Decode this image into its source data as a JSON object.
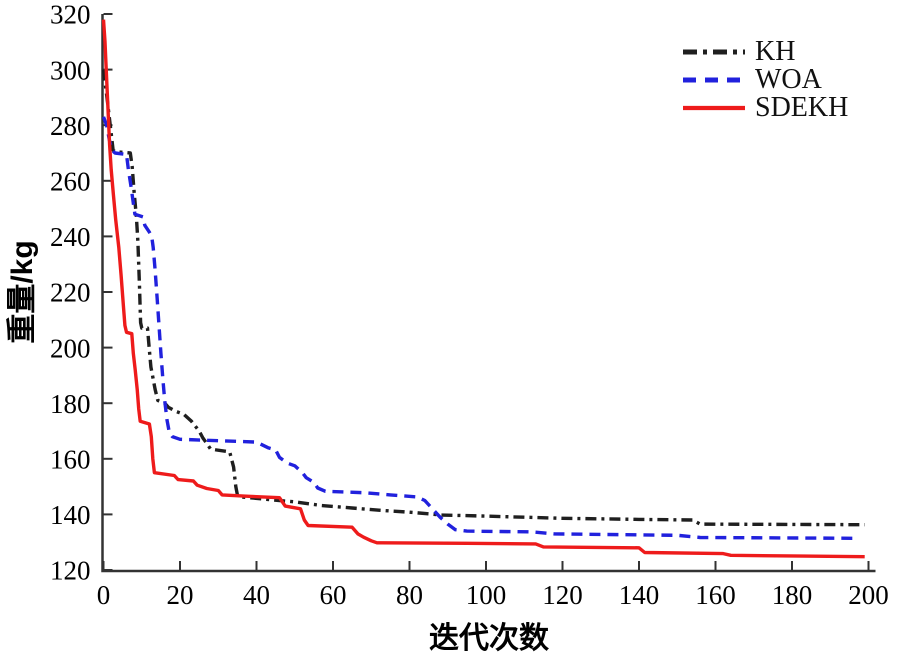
{
  "figure": {
    "background": "#ffffff"
  },
  "chart_data": {
    "type": "line",
    "title": "",
    "xlabel": "迭代次数",
    "ylabel": "重量/kg",
    "xlim": [
      0,
      200
    ],
    "ylim": [
      120,
      320
    ],
    "xticks": [
      0,
      20,
      40,
      60,
      80,
      100,
      120,
      140,
      160,
      180,
      200
    ],
    "yticks": [
      120,
      140,
      160,
      180,
      200,
      220,
      240,
      260,
      280,
      300,
      320
    ],
    "grid": false,
    "legend_position": "top-right",
    "legend_border": false,
    "axis_color": "#333333",
    "tick_label_color": "#000000",
    "series": [
      {
        "name": "KH",
        "color": "#1f1f1f",
        "line_style": "dashdot",
        "points": [
          [
            0,
            300
          ],
          [
            1,
            289
          ],
          [
            2,
            277
          ],
          [
            2.5,
            271
          ],
          [
            3,
            270.5
          ],
          [
            7,
            270
          ],
          [
            7.5,
            265
          ],
          [
            8,
            256
          ],
          [
            8.6,
            247
          ],
          [
            9,
            238
          ],
          [
            9.4,
            222
          ],
          [
            9.7,
            209
          ],
          [
            10,
            207
          ],
          [
            11.5,
            207
          ],
          [
            12,
            199
          ],
          [
            12.4,
            193
          ],
          [
            12.8,
            190
          ],
          [
            13.5,
            185
          ],
          [
            14.2,
            181
          ],
          [
            16,
            180
          ],
          [
            17,
            178.5
          ],
          [
            19,
            177
          ],
          [
            21,
            176
          ],
          [
            23,
            173.5
          ],
          [
            25,
            170
          ],
          [
            26,
            167.5
          ],
          [
            27,
            165.5
          ],
          [
            28,
            163.5
          ],
          [
            33,
            162.5
          ],
          [
            34,
            157
          ],
          [
            34.6,
            150
          ],
          [
            35,
            147
          ],
          [
            36,
            146.3
          ],
          [
            42,
            145.5
          ],
          [
            50,
            144.5
          ],
          [
            57,
            143.2
          ],
          [
            65,
            142.3
          ],
          [
            72,
            141.5
          ],
          [
            80,
            140.8
          ],
          [
            85,
            140.2
          ],
          [
            88,
            139.8
          ],
          [
            100,
            139.4
          ],
          [
            110,
            139
          ],
          [
            120,
            138.6
          ],
          [
            140,
            138.2
          ],
          [
            154,
            138
          ],
          [
            156,
            136.5
          ],
          [
            199,
            136.3
          ]
        ]
      },
      {
        "name": "WOA",
        "color": "#2121dd",
        "line_style": "dashed",
        "points": [
          [
            0,
            283
          ],
          [
            0.8,
            280
          ],
          [
            1.5,
            275
          ],
          [
            2.2,
            271
          ],
          [
            3,
            270
          ],
          [
            6,
            269.5
          ],
          [
            6.5,
            264
          ],
          [
            7.2,
            258
          ],
          [
            7.8,
            252
          ],
          [
            8.2,
            248
          ],
          [
            10.3,
            247
          ],
          [
            10.8,
            244
          ],
          [
            12,
            241.5
          ],
          [
            12.6,
            240
          ],
          [
            13,
            236
          ],
          [
            13.5,
            228
          ],
          [
            14,
            218
          ],
          [
            14.5,
            208
          ],
          [
            15,
            198
          ],
          [
            15.5,
            189
          ],
          [
            16,
            181
          ],
          [
            16.6,
            174
          ],
          [
            17.2,
            169.5
          ],
          [
            18,
            168
          ],
          [
            20,
            167
          ],
          [
            40,
            166
          ],
          [
            43,
            164
          ],
          [
            45,
            163.2
          ],
          [
            46,
            160.5
          ],
          [
            48,
            158.5
          ],
          [
            50,
            157.5
          ],
          [
            52,
            155
          ],
          [
            53,
            153.2
          ],
          [
            55,
            151.5
          ],
          [
            56,
            149.5
          ],
          [
            58,
            148.3
          ],
          [
            68,
            147.8
          ],
          [
            75,
            147
          ],
          [
            82,
            146.3
          ],
          [
            84,
            145
          ],
          [
            86,
            142
          ],
          [
            88,
            139
          ],
          [
            90,
            136.5
          ],
          [
            92,
            134.5
          ],
          [
            95,
            134
          ],
          [
            112,
            133.7
          ],
          [
            118,
            133
          ],
          [
            150,
            132.5
          ],
          [
            156,
            131.7
          ],
          [
            197,
            131.4
          ]
        ]
      },
      {
        "name": "SDEKH",
        "color": "#ee1b1b",
        "line_style": "solid",
        "points": [
          [
            0,
            318
          ],
          [
            0.4,
            310
          ],
          [
            0.8,
            297
          ],
          [
            1.2,
            285
          ],
          [
            1.6,
            273
          ],
          [
            2,
            264
          ],
          [
            2.6,
            255
          ],
          [
            3.2,
            246
          ],
          [
            4,
            236
          ],
          [
            4.6,
            226
          ],
          [
            5.2,
            215
          ],
          [
            5.6,
            208
          ],
          [
            6,
            205.5
          ],
          [
            7.4,
            205
          ],
          [
            7.8,
            198
          ],
          [
            8.3,
            192
          ],
          [
            8.8,
            185
          ],
          [
            9.2,
            178
          ],
          [
            9.6,
            173.5
          ],
          [
            12,
            172.5
          ],
          [
            12.5,
            168
          ],
          [
            12.9,
            160
          ],
          [
            13.3,
            155
          ],
          [
            18.5,
            154
          ],
          [
            19.5,
            152.5
          ],
          [
            23.5,
            152
          ],
          [
            24.5,
            150.5
          ],
          [
            27,
            149.3
          ],
          [
            30,
            148.6
          ],
          [
            31,
            147
          ],
          [
            38,
            146.5
          ],
          [
            46,
            146
          ],
          [
            47.5,
            143
          ],
          [
            51.5,
            142
          ],
          [
            52.5,
            138
          ],
          [
            53.5,
            136
          ],
          [
            65,
            135.4
          ],
          [
            66.5,
            133
          ],
          [
            68,
            131.8
          ],
          [
            70,
            130.5
          ],
          [
            71.5,
            129.8
          ],
          [
            95,
            129.6
          ],
          [
            113,
            129.4
          ],
          [
            115,
            128.3
          ],
          [
            140,
            128
          ],
          [
            141.5,
            126.3
          ],
          [
            162,
            125.9
          ],
          [
            164,
            125.3
          ],
          [
            183,
            125
          ],
          [
            199,
            124.8
          ]
        ]
      }
    ]
  }
}
